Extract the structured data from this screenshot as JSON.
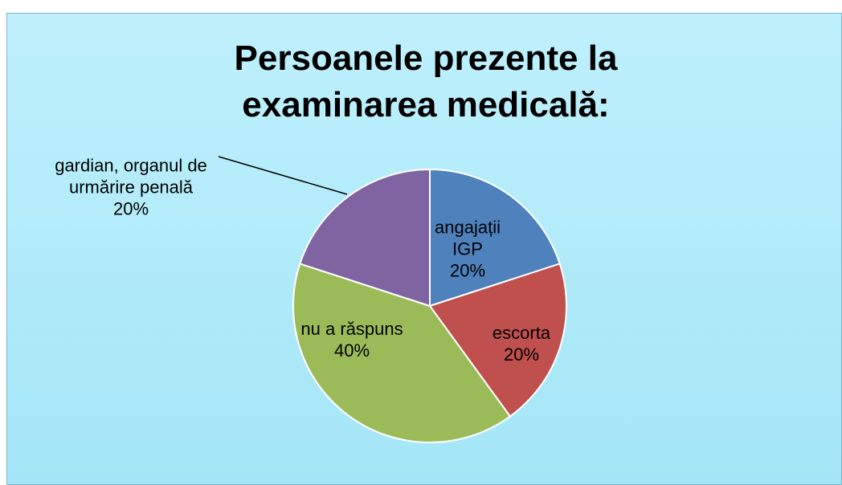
{
  "chart_data": {
    "type": "pie",
    "title": "Persoanele prezente la examinarea medicală:",
    "categories": [
      "angajații IGP",
      "escorta",
      "nu a răspuns",
      "gardian, organul de urmărire penală"
    ],
    "values": [
      20,
      20,
      40,
      20
    ],
    "value_labels": [
      "20%",
      "20%",
      "40%",
      "20%"
    ],
    "colors": [
      "#4f81bd",
      "#c0504d",
      "#9bbb59",
      "#8064a2"
    ]
  }
}
